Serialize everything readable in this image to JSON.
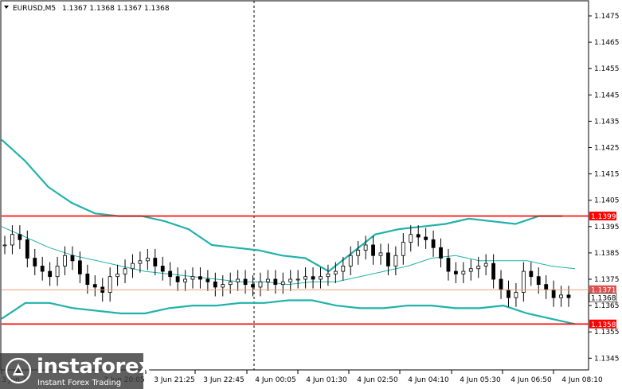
{
  "header": {
    "symbol": "EURUSD,M5",
    "ohlc": "1.1367 1.1368 1.1367 1.1368",
    "menu_icon": "triangle-down-icon"
  },
  "logo": {
    "brand": "instaforex",
    "tagline": "Instant Forex Trading",
    "icon": "instaforex-logo-icon"
  },
  "colors": {
    "level_line": "#ff0000",
    "band": "#20b2aa",
    "candle": "#000000",
    "bid_line": "#e8a07a",
    "ask_badge": "#e05050"
  },
  "chart_data": {
    "type": "candlestick",
    "ylim": [
      1.1339,
      1.1482
    ],
    "y_ticks": [
      "1.1475",
      "1.1465",
      "1.1455",
      "1.1445",
      "1.1435",
      "1.1425",
      "1.1415",
      "1.1405",
      "1.1395",
      "1.1385",
      "1.1375",
      "1.1365",
      "1.1355",
      "1.1345"
    ],
    "x_ticks": [
      "3 Jun 20:05",
      "3 Jun 21:25",
      "3 Jun 22:45",
      "4 Jun 00:05",
      "4 Jun 01:30",
      "4 Jun 02:50",
      "4 Jun 04:10",
      "4 Jun 05:30",
      "4 Jun 06:50",
      "4 Jun 08:10"
    ],
    "first_tick_partial": "3 Jun 2",
    "levels": [
      {
        "price": 1.1399,
        "label": "1.1399"
      },
      {
        "price": 1.1358,
        "label": "1.1358"
      }
    ],
    "current_prices": [
      {
        "price": 1.1371,
        "label": "1.1371"
      },
      {
        "price": 1.1368,
        "label": "1.1368"
      }
    ],
    "vertical_marker_time": "4 Jun 00:05",
    "bands": {
      "upper": [
        1.1428,
        1.142,
        1.141,
        1.1404,
        1.14,
        1.1399,
        1.1399,
        1.1397,
        1.1394,
        1.1388,
        1.1387,
        1.1386,
        1.1384,
        1.1383,
        1.1378,
        1.1385,
        1.1392,
        1.1394,
        1.1395,
        1.1396,
        1.1398,
        1.1397,
        1.1396,
        1.1399,
        1.1399
      ],
      "middle": [
        1.1395,
        1.1391,
        1.1387,
        1.1384,
        1.1382,
        1.138,
        1.1378,
        1.1377,
        1.1376,
        1.1375,
        1.1374,
        1.1374,
        1.1373,
        1.1374,
        1.1374,
        1.1376,
        1.1378,
        1.138,
        1.1383,
        1.1384,
        1.1382,
        1.1382,
        1.1382,
        1.138,
        1.1379
      ],
      "lower": [
        1.136,
        1.1366,
        1.1366,
        1.1364,
        1.1363,
        1.1362,
        1.1362,
        1.1364,
        1.1365,
        1.1365,
        1.1366,
        1.1366,
        1.1367,
        1.1367,
        1.1365,
        1.1364,
        1.1364,
        1.1365,
        1.1365,
        1.1364,
        1.1364,
        1.1365,
        1.1362,
        1.136,
        1.1358
      ]
    },
    "closes": [
      1.1388,
      1.1392,
      1.139,
      1.1383,
      1.138,
      1.1378,
      1.1376,
      1.138,
      1.1384,
      1.1382,
      1.1377,
      1.1373,
      1.1372,
      1.137,
      1.1376,
      1.1377,
      1.1379,
      1.1381,
      1.1382,
      1.1383,
      1.138,
      1.1378,
      1.1376,
      1.1374,
      1.1375,
      1.1376,
      1.1375,
      1.1374,
      1.1372,
      1.1373,
      1.1374,
      1.1375,
      1.1373,
      1.1372,
      1.1374,
      1.1375,
      1.1373,
      1.1374,
      1.1375,
      1.1375,
      1.1376,
      1.1375,
      1.1376,
      1.1377,
      1.1378,
      1.138,
      1.1384,
      1.1386,
      1.1388,
      1.1384,
      1.1385,
      1.138,
      1.1384,
      1.1389,
      1.1392,
      1.1391,
      1.139,
      1.1387,
      1.1383,
      1.1378,
      1.1377,
      1.1378,
      1.1379,
      1.138,
      1.1381,
      1.1375,
      1.1371,
      1.1368,
      1.137,
      1.1378,
      1.1376,
      1.1373,
      1.1371,
      1.1368,
      1.1369,
      1.1368
    ]
  }
}
